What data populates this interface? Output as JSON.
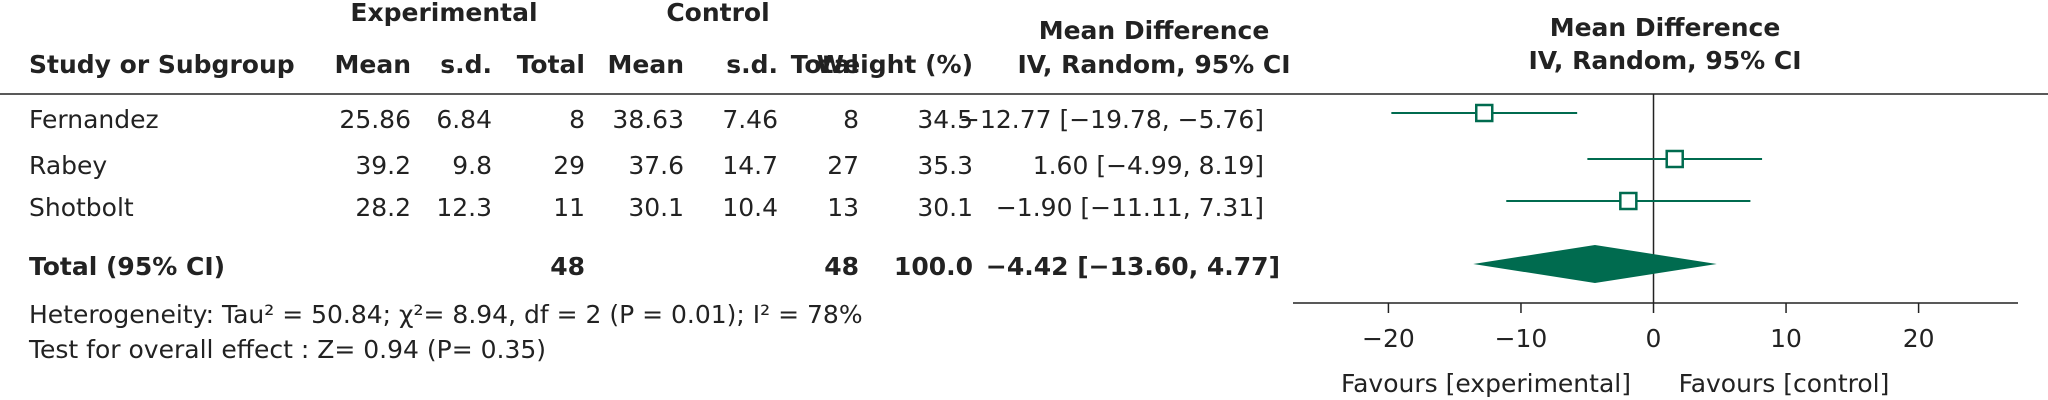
{
  "chart_data": {
    "type": "forest",
    "group_headers": [
      "Experimental",
      "Control"
    ],
    "column_headers": [
      "Study or Subgroup",
      "Mean",
      "s.d.",
      "Total",
      "Mean",
      "s.d.",
      "Total",
      "Weight (%)",
      "Mean Difference",
      "IV, Random, 95% CI"
    ],
    "plot_title": [
      "Mean Difference",
      "IV, Random, 95% CI"
    ],
    "studies": [
      "Fernandez",
      "Rabey",
      "Shotbolt"
    ],
    "exp_mean": [
      25.86,
      39.2,
      28.2
    ],
    "exp_sd": [
      6.84,
      9.8,
      12.3
    ],
    "exp_total": [
      8,
      29,
      11
    ],
    "ctl_mean": [
      38.63,
      37.6,
      30.1
    ],
    "ctl_sd": [
      7.46,
      14.7,
      10.4
    ],
    "ctl_total": [
      8,
      27,
      13
    ],
    "weight": [
      34.5,
      35.3,
      30.1
    ],
    "md": [
      -12.77,
      1.6,
      -1.9
    ],
    "ci_low": [
      -19.78,
      -4.99,
      -11.11
    ],
    "ci_high": [
      -5.76,
      8.19,
      7.31
    ],
    "md_labels": [
      "−12.77 [−19.78, −5.76]",
      "1.60 [−4.99, 8.19]",
      "−1.90 [−11.11, 7.31]"
    ],
    "total": {
      "label": "Total (95% CI)",
      "exp_total": 48,
      "ctl_total": 48,
      "weight": 100,
      "weight_label": "100.0",
      "md": -4.42,
      "ci_low": -13.6,
      "ci_high": 4.77,
      "md_label": "−4.42 [−13.60, 4.77]"
    },
    "heterogeneity": "Heterogeneity: Tau² = 50.84; χ²= 8.94, df = 2 (P = 0.01); I² = 78%",
    "overall_effect": "Test for overall effect : Z= 0.94 (P= 0.35)",
    "xlim": [
      -27.2,
      27.5
    ],
    "xticks": [
      {
        "value": -20,
        "label": "−20"
      },
      {
        "value": -10,
        "label": "−10"
      },
      0,
      10,
      20
    ],
    "favours": [
      "Favours [experimental]",
      "Favours [control]"
    ],
    "color": "#006b4f"
  }
}
